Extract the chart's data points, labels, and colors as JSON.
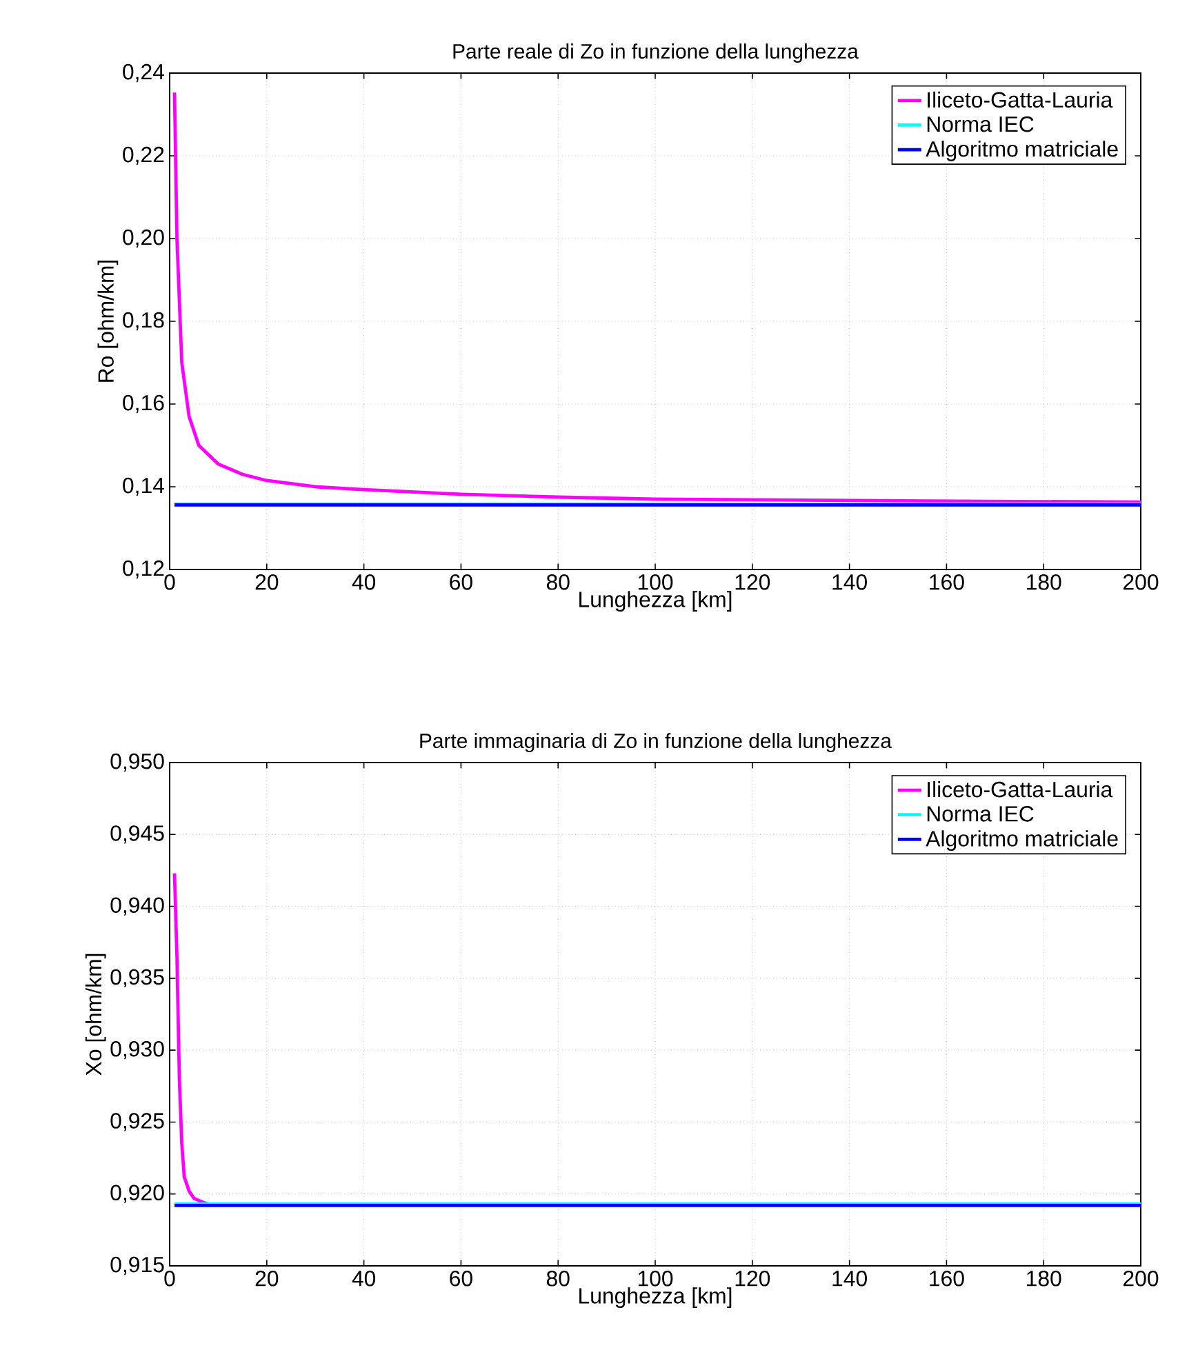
{
  "chart_data": [
    {
      "type": "line",
      "title": "Parte reale di Zo in funzione della lunghezza",
      "xlabel": "Lunghezza [km]",
      "ylabel": "Ro [ohm/km]",
      "grid": true,
      "legend": "top right",
      "xlim": [
        0,
        200
      ],
      "xticks": [
        0,
        20,
        40,
        60,
        80,
        100,
        120,
        140,
        160,
        180,
        200
      ],
      "ylim": [
        0.12,
        0.24
      ],
      "yticks": [
        {
          "value": 0.12,
          "label": "0,12"
        },
        {
          "value": 0.14,
          "label": "0,14"
        },
        {
          "value": 0.16,
          "label": "0,16"
        },
        {
          "value": 0.18,
          "label": "0,18"
        },
        {
          "value": 0.2,
          "label": "0,20"
        },
        {
          "value": 0.22,
          "label": "0,22"
        },
        {
          "value": 0.24,
          "label": "0,24"
        }
      ],
      "series": [
        {
          "name": "Iliceto-Gatta-Lauria",
          "color": "#ff00ff",
          "x": [
            1,
            1.5,
            2.5,
            4,
            6,
            10,
            15,
            20,
            30,
            40,
            60,
            80,
            100,
            150,
            200
          ],
          "values": [
            0.2353,
            0.2,
            0.17,
            0.157,
            0.15,
            0.1455,
            0.143,
            0.1415,
            0.14,
            0.1393,
            0.1382,
            0.1375,
            0.137,
            0.1366,
            0.1363
          ]
        },
        {
          "name": "Norma IEC",
          "color": "#00ffff",
          "x": [
            1,
            200
          ],
          "values": [
            0.1358,
            0.1358
          ]
        },
        {
          "name": "Algoritmo matriciale",
          "color": "#0000ff",
          "x": [
            1,
            200
          ],
          "values": [
            0.1356,
            0.1356
          ]
        }
      ]
    },
    {
      "type": "line",
      "title": "Parte immaginaria di Zo in funzione della lunghezza",
      "xlabel": "Lunghezza [km]",
      "ylabel": "Xo [ohm/km]",
      "grid": true,
      "legend": "top right",
      "xlim": [
        0,
        200
      ],
      "xticks": [
        0,
        20,
        40,
        60,
        80,
        100,
        120,
        140,
        160,
        180,
        200
      ],
      "ylim": [
        0.915,
        0.95
      ],
      "yticks": [
        {
          "value": 0.915,
          "label": "0,915"
        },
        {
          "value": 0.92,
          "label": "0,920"
        },
        {
          "value": 0.925,
          "label": "0,925"
        },
        {
          "value": 0.93,
          "label": "0,930"
        },
        {
          "value": 0.935,
          "label": "0,935"
        },
        {
          "value": 0.94,
          "label": "0,940"
        },
        {
          "value": 0.945,
          "label": "0,945"
        },
        {
          "value": 0.95,
          "label": "0,950"
        }
      ],
      "series": [
        {
          "name": "Iliceto-Gatta-Lauria",
          "color": "#ff00ff",
          "x": [
            1,
            1.5,
            2,
            2.5,
            3,
            4,
            5,
            7,
            8
          ],
          "values": [
            0.9423,
            0.9365,
            0.928,
            0.9235,
            0.9212,
            0.9202,
            0.9197,
            0.9194,
            0.9193
          ]
        },
        {
          "name": "Norma IEC",
          "color": "#00ffff",
          "x": [
            1,
            200
          ],
          "values": [
            0.9193,
            0.9193
          ]
        },
        {
          "name": "Algoritmo matriciale",
          "color": "#0000ff",
          "x": [
            1,
            200
          ],
          "values": [
            0.9192,
            0.9192
          ]
        }
      ]
    }
  ]
}
